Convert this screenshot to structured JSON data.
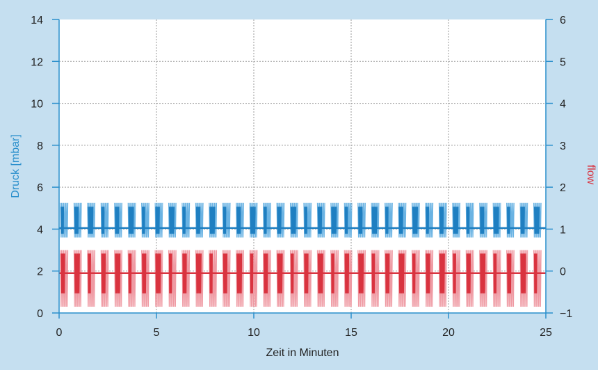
{
  "chart_data": {
    "type": "line",
    "xlabel": "Zeit in Minuten",
    "ylabel_left": "Druck [mbar]",
    "ylabel_right": "flow",
    "x_ticks": [
      "0",
      "5",
      "10",
      "15",
      "20",
      "25"
    ],
    "y_left_ticks": [
      "0",
      "2",
      "4",
      "6",
      "8",
      "10",
      "12",
      "14"
    ],
    "y_right_ticks": [
      "−1",
      "0",
      "1",
      "2",
      "3",
      "4",
      "5",
      "6"
    ],
    "xlim": [
      0,
      25
    ],
    "ylim_left": [
      0,
      14
    ],
    "ylim_right": [
      -1,
      6
    ],
    "grid": true,
    "series": [
      {
        "axis": "left",
        "color": "#1f7fc1",
        "light_color": "#6ab3e3",
        "mean": 4.05,
        "upper_envelope": 5.25,
        "lower_envelope": 3.6,
        "x_range": [
          0,
          25
        ]
      },
      {
        "axis": "right",
        "color": "#d9333f",
        "light_color": "#ef9aa3",
        "mean": -0.05,
        "upper_envelope": 0.5,
        "lower_envelope": -0.85,
        "x_range": [
          0,
          25
        ]
      }
    ],
    "colors": {
      "left_axis": "#2a8fcc",
      "right_axis_label": "#d9333f",
      "grid": "#9a9a9a",
      "background": "#c5dff0"
    }
  }
}
